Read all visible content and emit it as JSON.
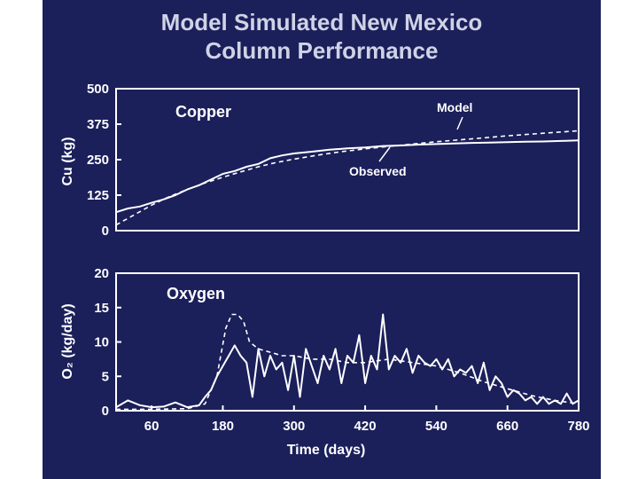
{
  "slide": {
    "title_line1": "Model Simulated New Mexico",
    "title_line2": "Column Performance",
    "background": "#1b1f5a",
    "line_color": "#ffffff"
  },
  "chart_data": [
    {
      "type": "line",
      "title": "Copper",
      "ylabel": "Cu (kg)",
      "xlabel": "",
      "xlim": [
        0,
        780
      ],
      "ylim": [
        0,
        500
      ],
      "yticks": [
        0,
        125,
        250,
        375,
        500
      ],
      "xticks": [],
      "annotations": [
        "Model",
        "Observed"
      ],
      "series": [
        {
          "name": "Observed",
          "style": "solid",
          "x": [
            0,
            20,
            40,
            60,
            80,
            100,
            120,
            140,
            160,
            180,
            200,
            220,
            240,
            260,
            280,
            300,
            330,
            360,
            390,
            420,
            450,
            480,
            510,
            540,
            570,
            600,
            630,
            660,
            690,
            720,
            750,
            780
          ],
          "y": [
            65,
            78,
            85,
            98,
            110,
            125,
            145,
            160,
            180,
            200,
            210,
            225,
            235,
            255,
            265,
            272,
            278,
            285,
            290,
            293,
            298,
            300,
            303,
            305,
            307,
            309,
            310,
            312,
            313,
            314,
            316,
            318
          ]
        },
        {
          "name": "Model",
          "style": "dashed",
          "x": [
            0,
            30,
            60,
            90,
            120,
            150,
            180,
            210,
            240,
            270,
            300,
            340,
            380,
            420,
            460,
            500,
            540,
            580,
            620,
            660,
            700,
            740,
            780
          ],
          "y": [
            20,
            55,
            90,
            120,
            145,
            168,
            188,
            207,
            225,
            240,
            252,
            266,
            278,
            288,
            297,
            305,
            313,
            320,
            327,
            334,
            340,
            346,
            352
          ]
        }
      ]
    },
    {
      "type": "line",
      "title": "Oxygen",
      "ylabel": "O₂ (kg/day)",
      "xlabel": "Time (days)",
      "xlim": [
        0,
        780
      ],
      "ylim": [
        0,
        20
      ],
      "yticks": [
        0,
        5,
        10,
        15,
        20
      ],
      "xticks": [
        60,
        180,
        300,
        420,
        540,
        660,
        780
      ],
      "series": [
        {
          "name": "Observed",
          "style": "solid",
          "x": [
            0,
            20,
            40,
            60,
            80,
            100,
            120,
            140,
            150,
            160,
            170,
            180,
            190,
            200,
            210,
            220,
            230,
            240,
            250,
            260,
            270,
            280,
            290,
            300,
            310,
            320,
            330,
            340,
            350,
            360,
            370,
            380,
            390,
            400,
            410,
            420,
            430,
            440,
            450,
            460,
            470,
            480,
            490,
            500,
            510,
            520,
            530,
            540,
            550,
            560,
            570,
            580,
            590,
            600,
            610,
            620,
            630,
            640,
            650,
            660,
            670,
            680,
            690,
            700,
            710,
            720,
            730,
            740,
            750,
            760,
            770,
            780
          ],
          "y": [
            0.5,
            1.5,
            0.8,
            0.5,
            0.6,
            1.2,
            0.5,
            0.8,
            2,
            3,
            5,
            6.5,
            8,
            9.5,
            8,
            7,
            2,
            9,
            5,
            8,
            6,
            7,
            3,
            8,
            2,
            9,
            6.5,
            4,
            8,
            6,
            9,
            4,
            8,
            7,
            11,
            4,
            8,
            6,
            14,
            6,
            8,
            7,
            9,
            5.5,
            8,
            7,
            6.5,
            7.5,
            6,
            7.5,
            5,
            6,
            5.5,
            6.5,
            4,
            7,
            3,
            5,
            4,
            2,
            3,
            2.5,
            1.5,
            2,
            1,
            2,
            1,
            1.5,
            1,
            2.5,
            1,
            1.5
          ]
        },
        {
          "name": "Model",
          "style": "dashed",
          "x": [
            0,
            60,
            120,
            150,
            170,
            185,
            195,
            205,
            215,
            225,
            240,
            260,
            280,
            300,
            330,
            360,
            390,
            420,
            460,
            500,
            540,
            580,
            620,
            660,
            700,
            740,
            780
          ],
          "y": [
            0.2,
            0.2,
            0.3,
            1,
            5,
            12,
            14,
            14,
            13,
            10,
            9,
            8.5,
            8,
            8,
            7.5,
            7.5,
            7,
            7,
            7.5,
            7,
            6.5,
            5.5,
            4.2,
            3.2,
            2.2,
            1.5,
            1
          ]
        }
      ]
    }
  ]
}
